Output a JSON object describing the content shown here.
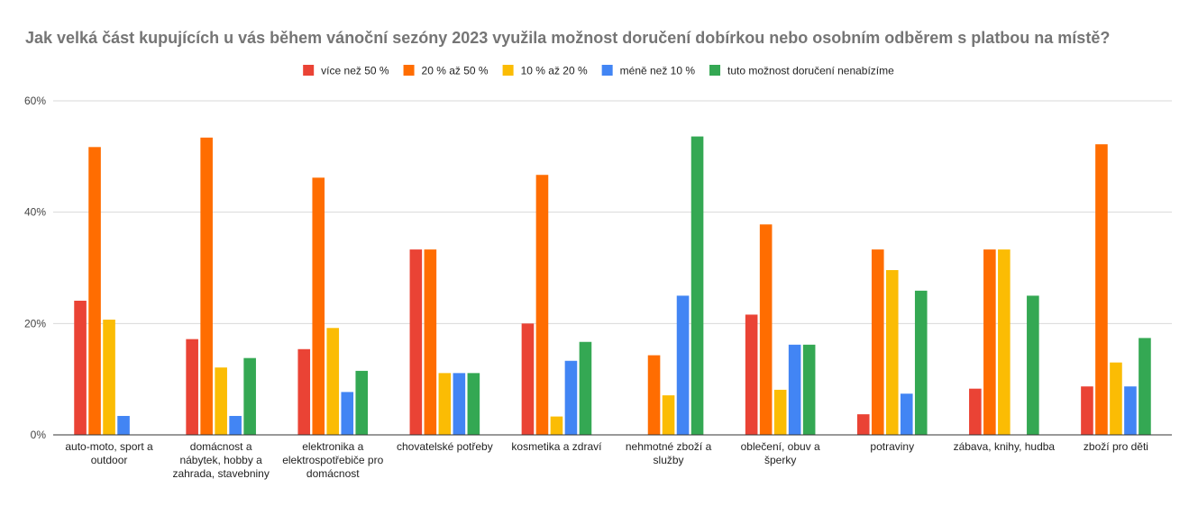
{
  "chart_data": {
    "type": "bar",
    "title": "Jak velká část kupujících u vás během vánoční sezóny 2023 využila možnost doručení dobírkou nebo osobním odběrem s platbou na místě?",
    "xlabel": "",
    "ylabel": "",
    "ylim": [
      0,
      60
    ],
    "yticks": [
      0,
      20,
      40,
      60
    ],
    "ytick_labels": [
      "0%",
      "20%",
      "40%",
      "60%"
    ],
    "grid": true,
    "legend_position": "top-center",
    "categories": [
      [
        "auto-moto, sport a",
        "outdoor"
      ],
      [
        "domácnost a",
        "nábytek, hobby a",
        "zahrada, stavebniny"
      ],
      [
        "elektronika a",
        "elektrospotřebiče pro",
        "domácnost"
      ],
      [
        "chovatelské potřeby"
      ],
      [
        "kosmetika a zdraví"
      ],
      [
        "nehmotné zboží a",
        "služby"
      ],
      [
        "oblečení, obuv a",
        "šperky"
      ],
      [
        "potraviny"
      ],
      [
        "zábava, knihy, hudba"
      ],
      [
        "zboží pro děti"
      ]
    ],
    "series": [
      {
        "name": "více než 50 %",
        "color": "#ea4335",
        "values": [
          24.1,
          17.2,
          15.4,
          33.3,
          20.0,
          0,
          21.6,
          3.7,
          8.3,
          8.7
        ]
      },
      {
        "name": "20 % až 50 %",
        "color": "#ff6d01",
        "values": [
          51.7,
          53.4,
          46.2,
          33.3,
          46.7,
          14.3,
          37.8,
          33.3,
          33.3,
          52.2
        ]
      },
      {
        "name": "10 % až 20 %",
        "color": "#fbbc04",
        "values": [
          20.7,
          12.1,
          19.2,
          11.1,
          3.3,
          7.1,
          8.1,
          29.6,
          33.3,
          13.0
        ]
      },
      {
        "name": "méně než 10 %",
        "color": "#4285f4",
        "values": [
          3.4,
          3.4,
          7.7,
          11.1,
          13.3,
          25.0,
          16.2,
          7.4,
          0,
          8.7
        ]
      },
      {
        "name": "tuto možnost doručení nenabízíme",
        "color": "#34a853",
        "values": [
          0,
          13.8,
          11.5,
          11.1,
          16.7,
          53.6,
          16.2,
          25.9,
          25.0,
          17.4
        ]
      }
    ]
  }
}
